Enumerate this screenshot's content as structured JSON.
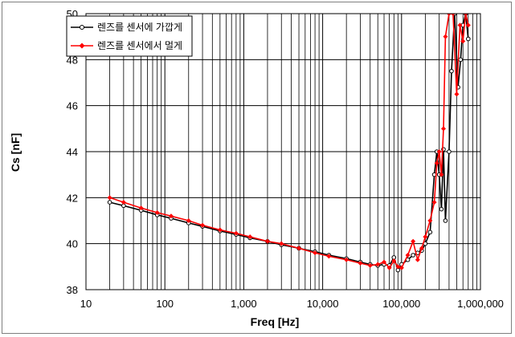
{
  "chart_data": {
    "type": "line",
    "xlabel": "Freq [Hz]",
    "ylabel": "Cs [nF]",
    "x_scale": "log",
    "xlim": [
      10,
      1000000
    ],
    "ylim": [
      38,
      50
    ],
    "x_ticks": [
      10,
      100,
      1000,
      10000,
      100000,
      1000000
    ],
    "x_tick_labels": [
      "10",
      "100",
      "1,000",
      "10,000",
      "100,000",
      "1,000,000"
    ],
    "y_ticks": [
      38,
      40,
      42,
      44,
      46,
      48,
      50
    ],
    "y_tick_labels": [
      "38",
      "40",
      "42",
      "44",
      "46",
      "48",
      "50"
    ],
    "grid": true,
    "legend_position": "top-left",
    "series": [
      {
        "name": "렌즈를 센서에 가깝게",
        "color": "#000000",
        "marker": "circle-open",
        "points": [
          [
            20,
            41.8
          ],
          [
            30,
            41.65
          ],
          [
            50,
            41.45
          ],
          [
            80,
            41.25
          ],
          [
            120,
            41.1
          ],
          [
            200,
            40.9
          ],
          [
            300,
            40.75
          ],
          [
            500,
            40.55
          ],
          [
            800,
            40.4
          ],
          [
            1200,
            40.25
          ],
          [
            2000,
            40.1
          ],
          [
            3000,
            39.95
          ],
          [
            5000,
            39.8
          ],
          [
            8000,
            39.65
          ],
          [
            12000,
            39.5
          ],
          [
            20000,
            39.35
          ],
          [
            30000,
            39.2
          ],
          [
            40000,
            39.1
          ],
          [
            50000,
            39.05
          ],
          [
            60000,
            39.1
          ],
          [
            70000,
            39.05
          ],
          [
            80000,
            39.4
          ],
          [
            90000,
            38.85
          ],
          [
            100000,
            39.1
          ],
          [
            120000,
            39.3
          ],
          [
            140000,
            39.5
          ],
          [
            160000,
            39.6
          ],
          [
            180000,
            39.7
          ],
          [
            200000,
            40.0
          ],
          [
            230000,
            40.5
          ],
          [
            260000,
            43.0
          ],
          [
            280000,
            44.0
          ],
          [
            300000,
            43.0
          ],
          [
            320000,
            41.5
          ],
          [
            340000,
            44.1
          ],
          [
            360000,
            41.0
          ],
          [
            400000,
            44.0
          ],
          [
            430000,
            47.5
          ],
          [
            470000,
            50.0
          ],
          [
            520000,
            46.8
          ],
          [
            560000,
            48.0
          ],
          [
            600000,
            49.5
          ],
          [
            650000,
            50.0
          ],
          [
            700000,
            48.9
          ]
        ]
      },
      {
        "name": "렌즈를 센서에서 멀게",
        "color": "#ff0000",
        "marker": "diamond",
        "points": [
          [
            20,
            42.0
          ],
          [
            30,
            41.8
          ],
          [
            50,
            41.55
          ],
          [
            80,
            41.35
          ],
          [
            120,
            41.2
          ],
          [
            200,
            41.0
          ],
          [
            300,
            40.8
          ],
          [
            500,
            40.6
          ],
          [
            800,
            40.45
          ],
          [
            1200,
            40.3
          ],
          [
            2000,
            40.1
          ],
          [
            3000,
            40.0
          ],
          [
            5000,
            39.8
          ],
          [
            8000,
            39.6
          ],
          [
            12000,
            39.45
          ],
          [
            20000,
            39.3
          ],
          [
            30000,
            39.15
          ],
          [
            40000,
            39.05
          ],
          [
            50000,
            39.1
          ],
          [
            60000,
            39.2
          ],
          [
            70000,
            38.95
          ],
          [
            80000,
            39.25
          ],
          [
            90000,
            39.0
          ],
          [
            100000,
            38.95
          ],
          [
            120000,
            39.5
          ],
          [
            140000,
            40.1
          ],
          [
            160000,
            39.3
          ],
          [
            180000,
            39.8
          ],
          [
            200000,
            40.3
          ],
          [
            230000,
            41.0
          ],
          [
            260000,
            41.8
          ],
          [
            280000,
            43.5
          ],
          [
            300000,
            44.0
          ],
          [
            320000,
            43.0
          ],
          [
            340000,
            45.0
          ],
          [
            360000,
            49.0
          ],
          [
            400000,
            50.0
          ],
          [
            450000,
            50.0
          ],
          [
            500000,
            46.5
          ],
          [
            550000,
            49.5
          ],
          [
            600000,
            48.8
          ],
          [
            650000,
            50.0
          ],
          [
            700000,
            49.5
          ]
        ]
      }
    ]
  }
}
